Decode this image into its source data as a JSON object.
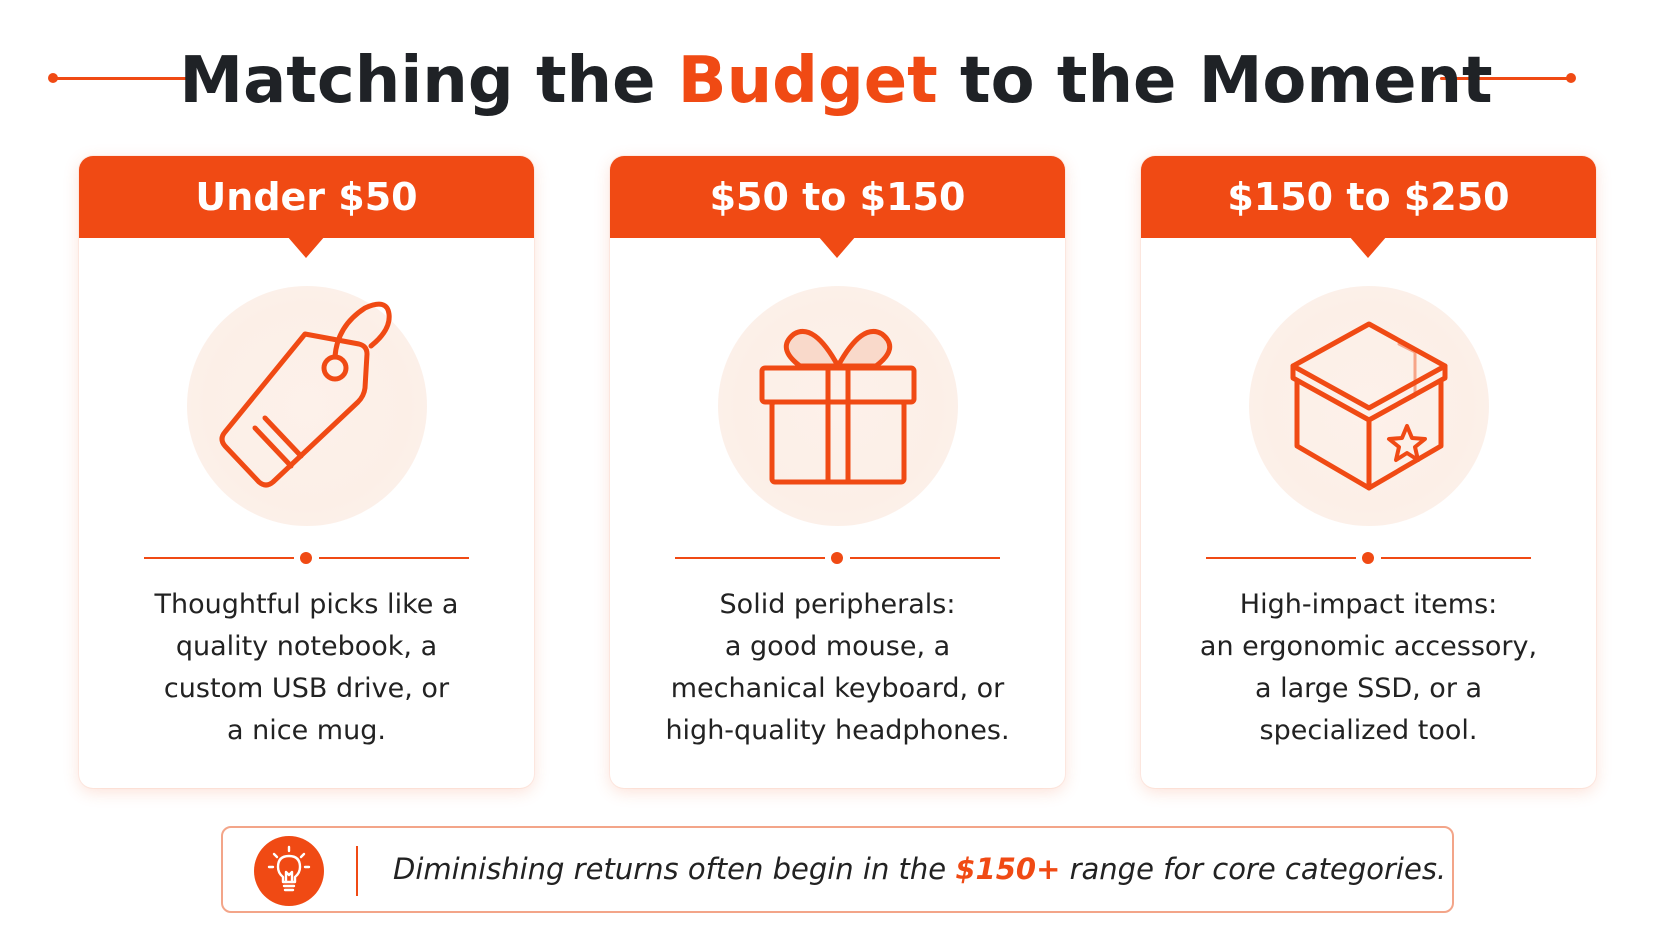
{
  "title": {
    "part1": "Matching the ",
    "accent": "Budget",
    "part2": " to the Moment"
  },
  "colors": {
    "accent": "#f04a14",
    "text": "#1f2226",
    "icon_bg": "#fcefe7"
  },
  "cards": [
    {
      "header": "Under $50",
      "icon": "price-tag-icon",
      "lines": [
        "Thoughtful picks like a",
        "quality notebook, a",
        "custom USB drive, or",
        "a nice mug."
      ]
    },
    {
      "header": "$50 to $150",
      "icon": "gift-box-icon",
      "lines": [
        "Solid peripherals:",
        "a good mouse, a",
        "mechanical keyboard, or",
        "high-quality headphones."
      ]
    },
    {
      "header": "$150 to $250",
      "icon": "star-package-icon",
      "lines": [
        "High-impact items:",
        "an ergonomic accessory,",
        "a large SSD, or a",
        "specialized tool."
      ]
    }
  ],
  "note": {
    "icon": "lightbulb-icon",
    "text_before": "Diminishing returns often begin in the ",
    "highlight": "$150+",
    "text_after": " range for core categories."
  }
}
